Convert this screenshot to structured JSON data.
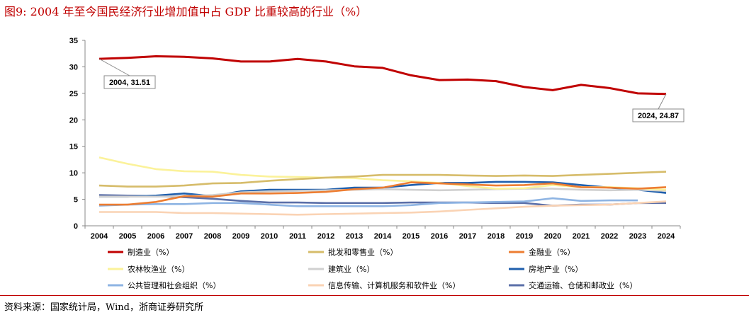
{
  "title": "图9:   2004 年至今国民经济行业增加值中占 GDP 比重较高的行业（%）",
  "source": "资料来源：国家统计局，Wind，浙商证券研究所",
  "chart_data": {
    "type": "line",
    "title": "",
    "xlabel": "",
    "ylabel": "",
    "ylim": [
      0,
      35
    ],
    "yticks": [
      0,
      5,
      10,
      15,
      20,
      25,
      30,
      35
    ],
    "grid": false,
    "legend_position": "bottom",
    "x": [
      "2004",
      "2005",
      "2006",
      "2007",
      "2008",
      "2009",
      "2010",
      "2011",
      "2012",
      "2013",
      "2014",
      "2015",
      "2016",
      "2017",
      "2018",
      "2019",
      "2020",
      "2021",
      "2022",
      "2023",
      "2024"
    ],
    "series": [
      {
        "name": "制造业（%）",
        "color": "#C00000",
        "values": [
          31.51,
          31.7,
          32.0,
          31.9,
          31.6,
          31.0,
          31.0,
          31.5,
          31.0,
          30.1,
          29.8,
          28.4,
          27.5,
          27.6,
          27.3,
          26.2,
          25.6,
          26.6,
          26.0,
          25.0,
          24.87
        ]
      },
      {
        "name": "批发和零售业（%）",
        "color": "#D6BC6A",
        "values": [
          7.6,
          7.4,
          7.4,
          7.6,
          8.0,
          8.1,
          8.5,
          8.8,
          9.1,
          9.3,
          9.6,
          9.6,
          9.6,
          9.5,
          9.4,
          9.5,
          9.4,
          9.6,
          9.8,
          10.0,
          10.2
        ]
      },
      {
        "name": "金融业（%）",
        "color": "#ED7D31",
        "values": [
          4.0,
          4.0,
          4.5,
          5.6,
          5.5,
          6.1,
          6.1,
          6.2,
          6.4,
          6.9,
          7.2,
          8.2,
          8.0,
          7.8,
          7.6,
          7.7,
          8.0,
          7.3,
          7.2,
          7.0,
          7.3
        ]
      },
      {
        "name": "农林牧渔业（%）",
        "color": "#FBF29A",
        "values": [
          12.9,
          11.7,
          10.7,
          10.3,
          10.2,
          9.6,
          9.3,
          9.2,
          9.1,
          9.0,
          8.6,
          8.4,
          8.1,
          7.5,
          7.0,
          7.1,
          7.7,
          7.3,
          7.3,
          7.1,
          6.8
        ]
      },
      {
        "name": "建筑业（%）",
        "color": "#D0D0D0",
        "values": [
          5.5,
          5.5,
          5.5,
          5.6,
          5.8,
          6.3,
          6.5,
          6.6,
          6.7,
          6.8,
          6.9,
          6.8,
          6.7,
          6.8,
          6.9,
          7.0,
          7.0,
          6.8,
          6.7,
          6.8,
          6.6
        ]
      },
      {
        "name": "房地产业（%）",
        "color": "#1F5FAD",
        "values": [
          5.5,
          5.5,
          5.7,
          6.1,
          5.6,
          6.5,
          6.8,
          6.8,
          6.8,
          7.2,
          7.2,
          7.7,
          8.1,
          8.1,
          8.3,
          8.3,
          8.2,
          7.7,
          7.2,
          6.8,
          6.2
        ]
      },
      {
        "name": "公共管理和社会组织（%）",
        "color": "#8EB4E3",
        "values": [
          3.8,
          4.0,
          4.1,
          4.1,
          4.3,
          4.3,
          4.0,
          3.7,
          3.7,
          3.7,
          3.7,
          3.9,
          4.3,
          4.4,
          4.5,
          4.6,
          5.2,
          4.7,
          4.8,
          4.8,
          null
        ]
      },
      {
        "name": "信息传输、计算机服务和软件业（%）",
        "color": "#FAD3B4",
        "values": [
          2.6,
          2.6,
          2.6,
          2.4,
          2.4,
          2.3,
          2.2,
          2.1,
          2.2,
          2.3,
          2.4,
          2.5,
          2.7,
          3.0,
          3.3,
          3.6,
          3.8,
          3.9,
          4.0,
          4.3,
          4.6
        ]
      },
      {
        "name": "交通运输、仓储和邮政业（%）",
        "color": "#5B6FA8",
        "values": [
          5.8,
          5.7,
          5.6,
          5.4,
          5.1,
          4.7,
          4.4,
          4.4,
          4.3,
          4.3,
          4.3,
          4.4,
          4.4,
          4.4,
          4.3,
          4.3,
          3.8,
          4.0,
          4.0,
          4.3,
          4.3
        ]
      }
    ],
    "annotations": [
      {
        "text": "2004, 31.51",
        "x": "2004",
        "y": 31.51
      },
      {
        "text": "2024, 24.87",
        "x": "2024",
        "y": 24.87
      }
    ]
  }
}
